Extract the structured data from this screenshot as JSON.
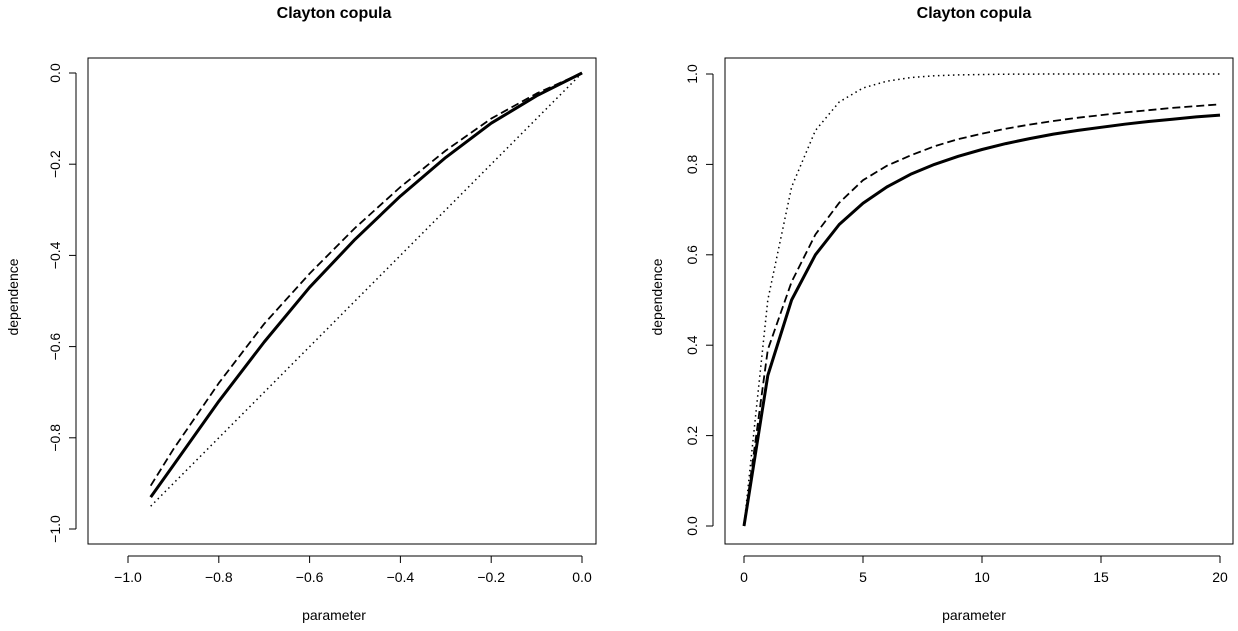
{
  "chart_data": [
    {
      "type": "line",
      "title": "Clayton copula",
      "xlabel": "parameter",
      "ylabel": "dependence",
      "xlim": [
        -0.95,
        0.0
      ],
      "ylim": [
        -1.0,
        0.0
      ],
      "grid": false,
      "legend": "none",
      "xticks": [
        {
          "value": -1.0,
          "label": "−1.0"
        },
        {
          "value": -0.8,
          "label": "−0.8"
        },
        {
          "value": -0.6,
          "label": "−0.6"
        },
        {
          "value": -0.4,
          "label": "−0.4"
        },
        {
          "value": -0.2,
          "label": "−0.2"
        },
        {
          "value": 0.0,
          "label": "0.0"
        }
      ],
      "yticks": [
        {
          "value": -1.0,
          "label": "−1.0"
        },
        {
          "value": -0.8,
          "label": "−0.8"
        },
        {
          "value": -0.6,
          "label": "−0.6"
        },
        {
          "value": -0.4,
          "label": "−0.4"
        },
        {
          "value": -0.2,
          "label": "−0.2"
        },
        {
          "value": 0.0,
          "label": "0.0"
        }
      ],
      "series": [
        {
          "style": "solid",
          "x": [
            -0.95,
            -0.9,
            -0.8,
            -0.7,
            -0.6,
            -0.5,
            -0.4,
            -0.3,
            -0.2,
            -0.1,
            0.0
          ],
          "y": [
            -0.93,
            -0.86,
            -0.72,
            -0.59,
            -0.47,
            -0.365,
            -0.27,
            -0.185,
            -0.11,
            -0.05,
            0.0
          ]
        },
        {
          "style": "dashed",
          "x": [
            -0.95,
            -0.9,
            -0.8,
            -0.7,
            -0.6,
            -0.5,
            -0.4,
            -0.3,
            -0.2,
            -0.1,
            0.0
          ],
          "y": [
            -0.905,
            -0.825,
            -0.68,
            -0.55,
            -0.44,
            -0.34,
            -0.25,
            -0.17,
            -0.1,
            -0.045,
            0.0
          ]
        },
        {
          "style": "dotted",
          "x": [
            -0.95,
            -0.9,
            -0.8,
            -0.7,
            -0.6,
            -0.5,
            -0.4,
            -0.3,
            -0.2,
            -0.1,
            0.0
          ],
          "y": [
            -0.95,
            -0.9,
            -0.8,
            -0.7,
            -0.6,
            -0.5,
            -0.4,
            -0.3,
            -0.2,
            -0.1,
            0.0
          ]
        }
      ]
    },
    {
      "type": "line",
      "title": "Clayton copula",
      "xlabel": "parameter",
      "ylabel": "dependence",
      "xlim": [
        0,
        20
      ],
      "ylim": [
        0.0,
        1.0
      ],
      "grid": false,
      "legend": "none",
      "xticks": [
        {
          "value": 0,
          "label": "0"
        },
        {
          "value": 5,
          "label": "5"
        },
        {
          "value": 10,
          "label": "10"
        },
        {
          "value": 15,
          "label": "15"
        },
        {
          "value": 20,
          "label": "20"
        }
      ],
      "yticks": [
        {
          "value": 0.0,
          "label": "0.0"
        },
        {
          "value": 0.2,
          "label": "0.2"
        },
        {
          "value": 0.4,
          "label": "0.4"
        },
        {
          "value": 0.6,
          "label": "0.6"
        },
        {
          "value": 0.8,
          "label": "0.8"
        },
        {
          "value": 1.0,
          "label": "1.0"
        }
      ],
      "series": [
        {
          "style": "solid",
          "x": [
            0,
            1,
            2,
            3,
            4,
            5,
            6,
            7,
            8,
            9,
            10,
            11,
            12,
            13,
            14,
            15,
            16,
            17,
            18,
            19,
            20
          ],
          "y": [
            0.0,
            0.333,
            0.5,
            0.6,
            0.667,
            0.714,
            0.75,
            0.778,
            0.8,
            0.818,
            0.833,
            0.846,
            0.857,
            0.867,
            0.875,
            0.882,
            0.889,
            0.895,
            0.9,
            0.905,
            0.909
          ]
        },
        {
          "style": "dashed",
          "x": [
            0,
            1,
            2,
            3,
            4,
            5,
            6,
            7,
            8,
            9,
            10,
            11,
            12,
            13,
            14,
            15,
            16,
            17,
            18,
            19,
            20
          ],
          "y": [
            0.0,
            0.39,
            0.54,
            0.645,
            0.715,
            0.765,
            0.797,
            0.82,
            0.84,
            0.856,
            0.868,
            0.879,
            0.888,
            0.896,
            0.903,
            0.909,
            0.915,
            0.92,
            0.925,
            0.929,
            0.933
          ]
        },
        {
          "style": "dotted",
          "x": [
            0,
            1,
            2,
            3,
            4,
            5,
            6,
            7,
            8,
            9,
            10,
            11,
            12,
            13,
            14,
            15,
            16,
            17,
            18,
            19,
            20
          ],
          "y": [
            0.0,
            0.5,
            0.75,
            0.875,
            0.938,
            0.969,
            0.984,
            0.992,
            0.996,
            0.998,
            0.999,
            0.9995,
            0.9998,
            0.9999,
            1.0,
            1.0,
            1.0,
            1.0,
            1.0,
            1.0,
            1.0
          ]
        }
      ]
    }
  ]
}
